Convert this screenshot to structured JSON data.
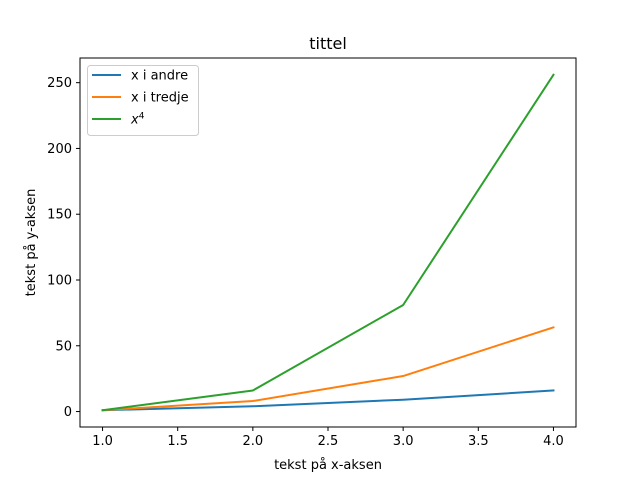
{
  "chart_data": {
    "type": "line",
    "title": "tittel",
    "xlabel": "tekst på x-aksen",
    "ylabel": "tekst på y-aksen",
    "x": [
      1,
      2,
      3,
      4
    ],
    "series": [
      {
        "name": "x i andre",
        "label_base": "x i andre",
        "label_sup": "",
        "values": [
          1,
          4,
          9,
          16
        ],
        "color": "#1f77b4"
      },
      {
        "name": "x i tredje",
        "label_base": "x i tredje",
        "label_sup": "",
        "values": [
          1,
          8,
          27,
          64
        ],
        "color": "#ff7f0e"
      },
      {
        "name": "x^4",
        "label_base": "x",
        "label_sup": "4",
        "values": [
          1,
          16,
          81,
          256
        ],
        "color": "#2ca02c"
      }
    ],
    "xlim": [
      0.85,
      4.15
    ],
    "ylim": [
      -11.75,
      268.75
    ],
    "xticks": [
      1.0,
      1.5,
      2.0,
      2.5,
      3.0,
      3.5,
      4.0
    ],
    "xtick_labels": [
      "1.0",
      "1.5",
      "2.0",
      "2.5",
      "3.0",
      "3.5",
      "4.0"
    ],
    "yticks": [
      0,
      50,
      100,
      150,
      200,
      250
    ],
    "ytick_labels": [
      "0",
      "50",
      "100",
      "150",
      "200",
      "250"
    ],
    "grid": false,
    "legend_position": "upper-left"
  }
}
